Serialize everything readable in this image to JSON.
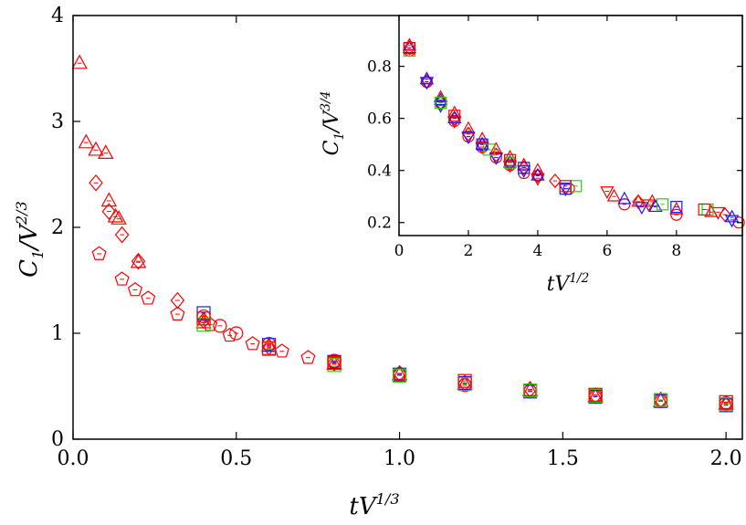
{
  "chart_data": [
    {
      "id": "main",
      "type": "scatter",
      "title": "",
      "xlabel": {
        "base": "tV",
        "exponent": "1/3"
      },
      "ylabel": {
        "base": "C",
        "subscript": "1",
        "slash": "/V",
        "exponent": "2/3"
      },
      "xlim": [
        0.0,
        2.05
      ],
      "ylim": [
        0,
        4
      ],
      "xticks": [
        0.0,
        0.5,
        1.0,
        1.5,
        2.0
      ],
      "xtick_labels": [
        "0.0",
        "0.5",
        "1.0",
        "1.5",
        "2.0"
      ],
      "yticks": [
        0,
        1,
        2,
        3,
        4
      ],
      "ytick_labels": [
        "0",
        "1",
        "2",
        "3",
        "4"
      ],
      "grid": false,
      "series": [
        {
          "name": "triangles-red",
          "marker": "triangle-up",
          "color": "#ff0000",
          "points": [
            [
              0.02,
              3.55
            ],
            [
              0.04,
              2.8
            ],
            [
              0.07,
              2.73
            ],
            [
              0.1,
              2.7
            ],
            [
              0.11,
              2.25
            ],
            [
              0.13,
              2.1
            ],
            [
              0.14,
              2.08
            ],
            [
              0.2,
              1.67
            ],
            [
              0.4,
              1.1
            ],
            [
              0.6,
              0.88
            ],
            [
              0.8,
              0.71
            ],
            [
              1.0,
              0.61
            ],
            [
              1.2,
              0.52
            ],
            [
              1.4,
              0.46
            ],
            [
              1.6,
              0.4
            ],
            [
              1.8,
              0.36
            ],
            [
              2.0,
              0.33
            ]
          ]
        },
        {
          "name": "diamonds-red",
          "marker": "diamond",
          "color": "#ff0000",
          "points": [
            [
              0.07,
              2.42
            ],
            [
              0.11,
              2.15
            ],
            [
              0.15,
              1.93
            ],
            [
              0.2,
              1.68
            ],
            [
              0.32,
              1.31
            ],
            [
              0.4,
              1.12
            ],
            [
              0.6,
              0.87
            ],
            [
              0.8,
              0.72
            ],
            [
              1.0,
              0.62
            ],
            [
              1.2,
              0.53
            ],
            [
              1.4,
              0.47
            ],
            [
              1.6,
              0.41
            ],
            [
              1.8,
              0.37
            ],
            [
              2.0,
              0.33
            ]
          ]
        },
        {
          "name": "pentagons-red",
          "marker": "pentagon",
          "color": "#ff0000",
          "points": [
            [
              0.08,
              1.75
            ],
            [
              0.15,
              1.51
            ],
            [
              0.19,
              1.41
            ],
            [
              0.23,
              1.33
            ],
            [
              0.32,
              1.18
            ],
            [
              0.42,
              1.08
            ],
            [
              0.48,
              0.98
            ],
            [
              0.55,
              0.9
            ],
            [
              0.64,
              0.83
            ],
            [
              0.72,
              0.77
            ],
            [
              0.8,
              0.73
            ],
            [
              1.0,
              0.62
            ]
          ]
        },
        {
          "name": "circles-red",
          "marker": "circle",
          "color": "#ff0000",
          "points": [
            [
              0.4,
              1.16
            ],
            [
              0.45,
              1.07
            ],
            [
              0.5,
              1.0
            ],
            [
              0.6,
              0.9
            ],
            [
              0.8,
              0.74
            ],
            [
              1.0,
              0.61
            ],
            [
              1.2,
              0.51
            ],
            [
              1.4,
              0.45
            ],
            [
              1.6,
              0.41
            ],
            [
              1.8,
              0.37
            ],
            [
              2.0,
              0.34
            ]
          ]
        },
        {
          "name": "squares-blue",
          "marker": "square",
          "color": "#1a1aff",
          "points": [
            [
              0.4,
              1.19
            ],
            [
              0.6,
              0.89
            ],
            [
              0.8,
              0.73
            ],
            [
              1.0,
              0.61
            ],
            [
              1.2,
              0.53
            ],
            [
              1.4,
              0.45
            ],
            [
              1.6,
              0.4
            ],
            [
              1.8,
              0.36
            ],
            [
              2.0,
              0.32
            ]
          ]
        },
        {
          "name": "squares-green",
          "marker": "square",
          "color": "#33cc00",
          "points": [
            [
              0.4,
              1.08
            ],
            [
              0.6,
              0.85
            ],
            [
              0.8,
              0.7
            ],
            [
              1.0,
              0.6
            ],
            [
              1.2,
              0.52
            ],
            [
              1.4,
              0.46
            ],
            [
              1.6,
              0.41
            ],
            [
              1.8,
              0.37
            ],
            [
              2.0,
              0.33
            ]
          ]
        },
        {
          "name": "squares-red",
          "marker": "square",
          "color": "#ff0000",
          "points": [
            [
              0.4,
              1.14
            ],
            [
              0.6,
              0.86
            ],
            [
              0.8,
              0.72
            ],
            [
              1.2,
              0.55
            ],
            [
              1.6,
              0.42
            ],
            [
              2.0,
              0.35
            ]
          ]
        }
      ]
    },
    {
      "id": "inset",
      "type": "scatter",
      "title": "",
      "xlabel": {
        "base": "tV",
        "exponent": "1/2"
      },
      "ylabel": {
        "base": "C",
        "subscript": "1",
        "slash": "/V",
        "exponent": "3/4"
      },
      "xlim": [
        0,
        9.9
      ],
      "ylim": [
        0.15,
        0.995
      ],
      "xticks": [
        0,
        2,
        4,
        6,
        8
      ],
      "xtick_labels": [
        "0",
        "2",
        "4",
        "6",
        "8"
      ],
      "yticks": [
        0.2,
        0.4,
        0.6,
        0.8
      ],
      "ytick_labels": [
        "0.2",
        "0.4",
        "0.6",
        "0.8"
      ],
      "grid": false,
      "series": [
        {
          "name": "triangles-red",
          "marker": "triangle-up",
          "color": "#ff0000",
          "points": [
            [
              0.3,
              0.88
            ],
            [
              0.8,
              0.75
            ],
            [
              1.2,
              0.68
            ],
            [
              1.6,
              0.62
            ],
            [
              2.0,
              0.56
            ],
            [
              2.4,
              0.52
            ],
            [
              2.8,
              0.48
            ],
            [
              3.2,
              0.45
            ],
            [
              3.6,
              0.42
            ],
            [
              4.0,
              0.4
            ],
            [
              6.2,
              0.3
            ],
            [
              6.9,
              0.28
            ],
            [
              7.3,
              0.28
            ],
            [
              8.0,
              0.25
            ],
            [
              9.0,
              0.24
            ]
          ]
        },
        {
          "name": "diamonds-red",
          "marker": "diamond",
          "color": "#ff0000",
          "points": [
            [
              0.3,
              0.87
            ],
            [
              0.8,
              0.74
            ],
            [
              1.2,
              0.66
            ],
            [
              1.6,
              0.6
            ],
            [
              2.0,
              0.54
            ],
            [
              2.4,
              0.5
            ],
            [
              2.8,
              0.46
            ],
            [
              3.2,
              0.43
            ],
            [
              3.6,
              0.41
            ],
            [
              4.0,
              0.38
            ],
            [
              4.5,
              0.36
            ],
            [
              6.9,
              0.28
            ],
            [
              9.4,
              0.23
            ]
          ]
        },
        {
          "name": "circles-red",
          "marker": "circle",
          "color": "#ff0000",
          "points": [
            [
              0.3,
              0.86
            ],
            [
              0.8,
              0.74
            ],
            [
              1.2,
              0.66
            ],
            [
              1.6,
              0.59
            ],
            [
              2.0,
              0.53
            ],
            [
              2.4,
              0.49
            ],
            [
              2.8,
              0.45
            ],
            [
              3.2,
              0.42
            ],
            [
              3.6,
              0.39
            ],
            [
              4.0,
              0.38
            ],
            [
              4.9,
              0.33
            ],
            [
              6.5,
              0.27
            ],
            [
              8.0,
              0.23
            ],
            [
              9.8,
              0.2
            ]
          ]
        },
        {
          "name": "triangles-down-red",
          "marker": "triangle-down",
          "color": "#ff0000",
          "points": [
            [
              0.8,
              0.74
            ],
            [
              1.6,
              0.59
            ],
            [
              2.4,
              0.49
            ],
            [
              3.2,
              0.42
            ],
            [
              4.0,
              0.37
            ],
            [
              6.0,
              0.32
            ],
            [
              7.2,
              0.27
            ],
            [
              9.2,
              0.24
            ]
          ]
        },
        {
          "name": "triangles-blue",
          "marker": "triangle-up",
          "color": "#1a1aff",
          "points": [
            [
              0.3,
              0.87
            ],
            [
              0.8,
              0.75
            ],
            [
              1.2,
              0.67
            ],
            [
              1.6,
              0.6
            ],
            [
              2.4,
              0.5
            ],
            [
              3.2,
              0.43
            ],
            [
              4.0,
              0.38
            ],
            [
              6.5,
              0.29
            ],
            [
              7.4,
              0.26
            ],
            [
              9.6,
              0.22
            ]
          ]
        },
        {
          "name": "triangles-down-blue",
          "marker": "triangle-down",
          "color": "#1a1aff",
          "points": [
            [
              0.8,
              0.74
            ],
            [
              1.2,
              0.65
            ],
            [
              2.0,
              0.53
            ],
            [
              2.8,
              0.45
            ],
            [
              3.6,
              0.4
            ],
            [
              4.8,
              0.33
            ],
            [
              7.0,
              0.26
            ],
            [
              9.6,
              0.21
            ]
          ]
        },
        {
          "name": "squares-blue",
          "marker": "square",
          "color": "#1a1aff",
          "points": [
            [
              0.3,
              0.87
            ],
            [
              1.2,
              0.66
            ],
            [
              2.4,
              0.5
            ],
            [
              3.6,
              0.41
            ],
            [
              4.8,
              0.33
            ],
            [
              8.0,
              0.26
            ]
          ]
        },
        {
          "name": "squares-green",
          "marker": "square",
          "color": "#33cc00",
          "points": [
            [
              0.3,
              0.86
            ],
            [
              1.2,
              0.66
            ],
            [
              2.6,
              0.48
            ],
            [
              3.2,
              0.43
            ],
            [
              5.1,
              0.34
            ],
            [
              7.6,
              0.27
            ],
            [
              8.9,
              0.25
            ]
          ]
        },
        {
          "name": "squares-red",
          "marker": "square",
          "color": "#ff0000",
          "points": [
            [
              0.3,
              0.87
            ],
            [
              1.6,
              0.61
            ],
            [
              3.2,
              0.44
            ],
            [
              4.8,
              0.34
            ],
            [
              8.8,
              0.25
            ]
          ]
        }
      ]
    }
  ]
}
